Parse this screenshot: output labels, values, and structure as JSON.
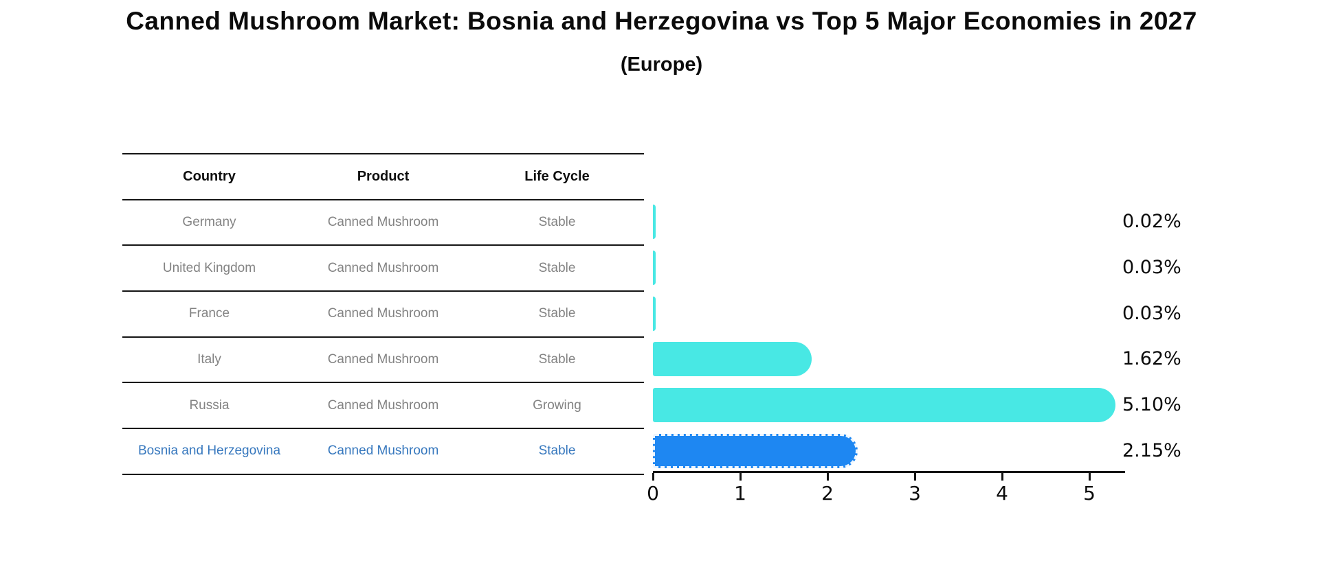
{
  "header": {
    "title": "Canned Mushroom Market: Bosnia and Herzegovina vs Top 5 Major Economies in 2027",
    "subtitle": "(Europe)"
  },
  "table": {
    "columns": [
      "Country",
      "Product",
      "Life Cycle"
    ]
  },
  "chart_data": {
    "type": "bar",
    "orientation": "horizontal",
    "title": "Canned Mushroom Market: Bosnia and Herzegovina vs Top 5 Major Economies in 2027 (Europe)",
    "categories": [
      "Germany",
      "United Kingdom",
      "France",
      "Italy",
      "Russia",
      "Bosnia and Herzegovina"
    ],
    "values": [
      0.02,
      0.03,
      0.03,
      1.62,
      5.1,
      2.15
    ],
    "rows": [
      {
        "country": "Germany",
        "product": "Canned Mushroom",
        "life_cycle": "Stable",
        "value": 0.02,
        "value_label": "0.02%",
        "highlight": false
      },
      {
        "country": "United Kingdom",
        "product": "Canned Mushroom",
        "life_cycle": "Stable",
        "value": 0.03,
        "value_label": "0.03%",
        "highlight": false
      },
      {
        "country": "France",
        "product": "Canned Mushroom",
        "life_cycle": "Stable",
        "value": 0.03,
        "value_label": "0.03%",
        "highlight": false
      },
      {
        "country": "Italy",
        "product": "Canned Mushroom",
        "life_cycle": "Stable",
        "value": 1.62,
        "value_label": "1.62%",
        "highlight": false
      },
      {
        "country": "Russia",
        "product": "Canned Mushroom",
        "life_cycle": "Growing",
        "value": 5.1,
        "value_label": "5.10%",
        "highlight": false
      },
      {
        "country": "Bosnia and Herzegovina",
        "product": "Canned Mushroom",
        "life_cycle": "Stable",
        "value": 2.15,
        "value_label": "2.15%",
        "highlight": true
      }
    ],
    "x_ticks": [
      0,
      1,
      2,
      3,
      4,
      5
    ],
    "xlim": [
      0,
      5.4
    ],
    "grid": false,
    "legend": "none",
    "colors": {
      "bar": "#48e8e4",
      "highlight_bar": "#1e87f2",
      "highlight_text": "#3778be",
      "table_text": "#838383",
      "heading_text": "#0e0e0e",
      "line": "#141414"
    }
  }
}
